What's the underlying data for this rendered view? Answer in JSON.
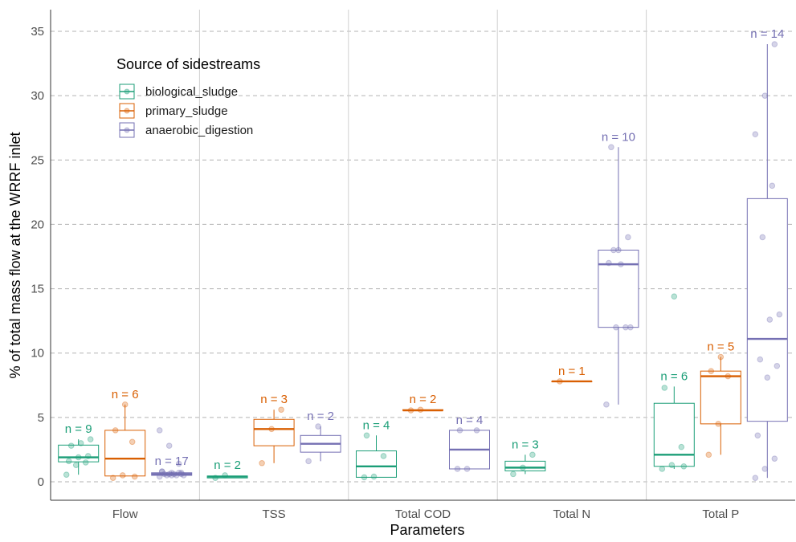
{
  "chart_data": {
    "type": "box",
    "xlabel": "Parameters",
    "ylabel": "% of total mass flow at the WRRF inlet",
    "ylim": [
      -1.5,
      36.5
    ],
    "yticks": [
      0,
      5,
      10,
      15,
      20,
      25,
      30,
      35
    ],
    "categories": [
      "Flow",
      "TSS",
      "Total COD",
      "Total N",
      "Total P"
    ],
    "grid": {
      "horizontal": "dashed",
      "vertical": "solid"
    },
    "legend": {
      "title": "Source of sidestreams",
      "position": "top-left",
      "entries": [
        "biological_sludge",
        "primary_sludge",
        "anaerobic_digestion"
      ]
    },
    "colors": {
      "biological_sludge": "#1b9e77",
      "primary_sludge": "#d95f02",
      "anaerobic_digestion": "#7570b3"
    },
    "series": [
      {
        "name": "biological_sludge",
        "boxes": [
          {
            "category": "Flow",
            "n_label": "n = 9",
            "whisker_low": 0.55,
            "q1": 1.55,
            "median": 1.9,
            "q3": 2.85,
            "whisker_high": 3.3,
            "points": [
              0.55,
              1.3,
              1.5,
              1.6,
              1.9,
              2.0,
              2.8,
              3.0,
              3.3
            ]
          },
          {
            "category": "TSS",
            "n_label": "n = 2",
            "whisker_low": 0.3,
            "q1": 0.3,
            "median": 0.4,
            "q3": 0.45,
            "whisker_high": 0.5,
            "points": [
              0.3,
              0.5
            ]
          },
          {
            "category": "Total COD",
            "n_label": "n = 4",
            "whisker_low": 0.35,
            "q1": 0.35,
            "median": 1.2,
            "q3": 2.4,
            "whisker_high": 3.6,
            "points": [
              0.35,
              0.4,
              2.0,
              3.6
            ]
          },
          {
            "category": "Total N",
            "n_label": "n = 3",
            "whisker_low": 0.6,
            "q1": 0.85,
            "median": 1.1,
            "q3": 1.6,
            "whisker_high": 2.1,
            "points": [
              0.6,
              1.1,
              2.1
            ]
          },
          {
            "category": "Total P",
            "n_label": "n = 6",
            "whisker_low": 1.0,
            "q1": 1.2,
            "median": 2.1,
            "q3": 6.1,
            "whisker_high": 7.4,
            "points": [
              1.0,
              1.3,
              2.7,
              7.3,
              14.4,
              1.2
            ]
          }
        ]
      },
      {
        "name": "primary_sludge",
        "boxes": [
          {
            "category": "Flow",
            "n_label": "n = 6",
            "whisker_low": 0.4,
            "q1": 0.45,
            "median": 1.8,
            "q3": 4.0,
            "whisker_high": 6.0,
            "points": [
              0.3,
              0.5,
              3.1,
              4.0,
              6.0,
              0.4
            ]
          },
          {
            "category": "TSS",
            "n_label": "n = 3",
            "whisker_low": 1.45,
            "q1": 2.8,
            "median": 4.1,
            "q3": 4.85,
            "whisker_high": 5.6,
            "points": [
              1.45,
              4.1,
              5.6
            ]
          },
          {
            "category": "Total COD",
            "n_label": "n = 2",
            "whisker_low": 5.55,
            "q1": 5.55,
            "median": 5.55,
            "q3": 5.6,
            "whisker_high": 5.6,
            "points": [
              5.55,
              5.6
            ]
          },
          {
            "category": "Total N",
            "n_label": "n = 1",
            "whisker_low": 7.8,
            "q1": 7.8,
            "median": 7.8,
            "q3": 7.8,
            "whisker_high": 7.8,
            "points": [
              7.8
            ]
          },
          {
            "category": "Total P",
            "n_label": "n = 5",
            "whisker_low": 2.1,
            "q1": 4.5,
            "median": 8.2,
            "q3": 8.6,
            "whisker_high": 9.7,
            "points": [
              2.1,
              4.5,
              8.2,
              8.6,
              9.7
            ]
          }
        ]
      },
      {
        "name": "anaerobic_digestion",
        "boxes": [
          {
            "category": "Flow",
            "n_label": "n = 17",
            "whisker_low": 0.45,
            "q1": 0.5,
            "median": 0.6,
            "q3": 0.7,
            "whisker_high": 0.8,
            "points": [
              4.0,
              2.8,
              1.4,
              0.8,
              0.7,
              0.7,
              0.6,
              0.6,
              0.5,
              0.5,
              0.5,
              0.4,
              0.6,
              0.7,
              0.8,
              0.5,
              0.6
            ]
          },
          {
            "category": "TSS",
            "n_label": "n = 2",
            "whisker_low": 1.6,
            "q1": 2.3,
            "median": 2.95,
            "q3": 3.6,
            "whisker_high": 4.3,
            "points": [
              1.6,
              4.3
            ]
          },
          {
            "category": "Total COD",
            "n_label": "n = 4",
            "whisker_low": 1.0,
            "q1": 1.0,
            "median": 2.5,
            "q3": 4.0,
            "whisker_high": 4.0,
            "points": [
              1.0,
              1.0,
              4.0,
              4.0
            ]
          },
          {
            "category": "Total N",
            "n_label": "n = 10",
            "whisker_low": 6.0,
            "q1": 12.0,
            "median": 16.9,
            "q3": 18.0,
            "whisker_high": 26.0,
            "points": [
              6.0,
              12.0,
              12.0,
              17.0,
              18.0,
              19.0,
              26.0,
              16.9,
              12.0,
              18.0
            ]
          },
          {
            "category": "Total P",
            "n_label": "n = 14",
            "whisker_low": 0.3,
            "q1": 4.7,
            "median": 11.1,
            "q3": 22.0,
            "whisker_high": 34.0,
            "points": [
              0.3,
              1.0,
              1.8,
              3.6,
              8.1,
              9.0,
              9.5,
              12.6,
              13.0,
              19.0,
              23.0,
              27.0,
              30.0,
              34.0
            ]
          }
        ]
      }
    ]
  }
}
